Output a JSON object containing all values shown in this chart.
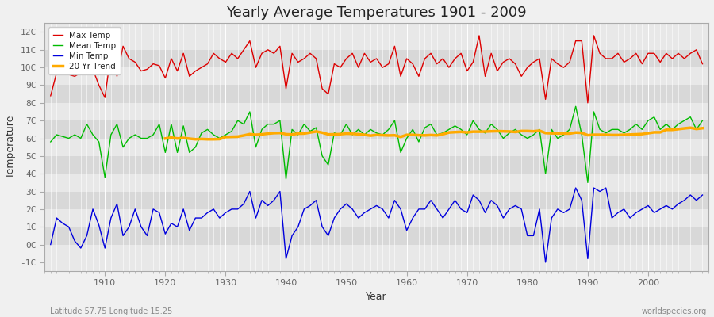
{
  "title": "Yearly Average Temperatures 1901 - 2009",
  "xlabel": "Year",
  "ylabel": "Temperature",
  "footnote_left": "Latitude 57.75 Longitude 15.25",
  "footnote_right": "worldspecies.org",
  "year_start": 1901,
  "year_end": 2009,
  "ylim": [
    -1.5,
    12.5
  ],
  "xlim_start": 1900,
  "xlim_end": 2010,
  "yticks": [
    -1,
    0,
    1,
    2,
    3,
    4,
    5,
    6,
    7,
    8,
    9,
    10,
    11,
    12
  ],
  "ytick_labels": [
    "-1C",
    "0C",
    "1C",
    "2C",
    "3C",
    "4C",
    "5C",
    "6C",
    "7C",
    "8C",
    "9C",
    "10C",
    "11C",
    "12C"
  ],
  "legend_entries": [
    "Max Temp",
    "Mean Temp",
    "Min Temp",
    "20 Yr Trend"
  ],
  "line_colors": [
    "#dd0000",
    "#00bb00",
    "#0000dd",
    "#ffaa00"
  ],
  "background_color": "#f0f0f0",
  "plot_bg_color_light": "#e8e8e8",
  "plot_bg_color_dark": "#d8d8d8",
  "grid_color": "#ffffff",
  "title_fontsize": 13,
  "label_fontsize": 9,
  "tick_fontsize": 8,
  "tick_color": "#666666",
  "xticks": [
    1910,
    1920,
    1930,
    1940,
    1950,
    1960,
    1970,
    1980,
    1990,
    2000
  ],
  "max_temp": [
    8.4,
    9.7,
    9.8,
    9.6,
    9.5,
    9.7,
    9.8,
    9.9,
    9.0,
    8.3,
    10.8,
    9.5,
    11.2,
    10.5,
    10.3,
    9.8,
    9.9,
    10.2,
    10.1,
    9.4,
    10.5,
    9.8,
    10.8,
    9.5,
    9.8,
    10.0,
    10.2,
    10.8,
    10.5,
    10.3,
    10.8,
    10.5,
    11.0,
    11.5,
    10.0,
    10.8,
    11.0,
    10.8,
    11.2,
    8.8,
    10.8,
    10.3,
    10.5,
    10.8,
    10.5,
    8.8,
    8.5,
    10.2,
    10.0,
    10.5,
    10.8,
    10.0,
    10.8,
    10.3,
    10.5,
    10.0,
    10.2,
    11.2,
    9.5,
    10.5,
    10.2,
    9.5,
    10.5,
    10.8,
    10.2,
    10.5,
    10.0,
    10.5,
    10.8,
    9.8,
    10.3,
    11.8,
    9.5,
    10.8,
    9.8,
    10.3,
    10.5,
    10.2,
    9.5,
    10.0,
    10.3,
    10.5,
    8.2,
    10.5,
    10.2,
    10.0,
    10.3,
    11.5,
    11.5,
    8.0,
    11.8,
    10.8,
    10.5,
    10.5,
    10.8,
    10.3,
    10.5,
    10.8,
    10.2,
    10.8,
    10.8,
    10.3,
    10.8,
    10.5,
    10.8,
    10.5,
    10.8,
    11.0,
    10.2
  ],
  "mean_temp": [
    5.8,
    6.2,
    6.1,
    6.0,
    6.2,
    6.0,
    6.8,
    6.2,
    5.8,
    3.8,
    6.2,
    6.8,
    5.5,
    6.0,
    6.2,
    6.0,
    6.0,
    6.2,
    6.8,
    5.2,
    6.8,
    5.2,
    6.7,
    5.2,
    5.5,
    6.3,
    6.5,
    6.2,
    6.0,
    6.2,
    6.4,
    7.0,
    6.8,
    7.5,
    5.5,
    6.5,
    6.8,
    6.8,
    7.0,
    3.7,
    6.5,
    6.2,
    6.8,
    6.4,
    6.6,
    5.0,
    4.5,
    6.3,
    6.2,
    6.8,
    6.2,
    6.5,
    6.2,
    6.5,
    6.3,
    6.2,
    6.5,
    7.0,
    5.2,
    6.0,
    6.5,
    5.8,
    6.6,
    6.8,
    6.2,
    6.3,
    6.5,
    6.7,
    6.5,
    6.2,
    7.0,
    6.5,
    6.3,
    6.8,
    6.5,
    6.0,
    6.3,
    6.5,
    6.2,
    6.0,
    6.2,
    6.5,
    4.0,
    6.5,
    6.0,
    6.2,
    6.5,
    7.8,
    6.2,
    3.5,
    7.5,
    6.5,
    6.3,
    6.5,
    6.5,
    6.3,
    6.5,
    6.8,
    6.5,
    7.0,
    7.2,
    6.5,
    6.8,
    6.5,
    6.8,
    7.0,
    7.2,
    6.5,
    7.0
  ],
  "min_temp": [
    0.0,
    1.5,
    1.2,
    1.0,
    0.2,
    -0.2,
    0.5,
    2.0,
    1.1,
    -0.2,
    1.5,
    2.3,
    0.5,
    1.0,
    2.0,
    1.0,
    0.5,
    2.0,
    1.8,
    0.6,
    1.2,
    1.0,
    2.0,
    0.8,
    1.5,
    1.5,
    1.8,
    2.0,
    1.5,
    1.8,
    2.0,
    2.0,
    2.3,
    3.0,
    1.5,
    2.5,
    2.2,
    2.5,
    3.0,
    -0.8,
    0.5,
    1.0,
    2.0,
    2.2,
    2.5,
    1.0,
    0.5,
    1.5,
    2.0,
    2.3,
    2.0,
    1.5,
    1.8,
    2.0,
    2.2,
    2.0,
    1.5,
    2.5,
    2.0,
    0.8,
    1.5,
    2.0,
    2.0,
    2.5,
    2.0,
    1.5,
    2.0,
    2.5,
    2.0,
    1.8,
    2.8,
    2.5,
    1.8,
    2.5,
    2.2,
    1.5,
    2.0,
    2.2,
    2.0,
    0.5,
    0.5,
    2.0,
    -1.0,
    1.5,
    2.0,
    1.8,
    2.0,
    3.2,
    2.5,
    -0.8,
    3.2,
    3.0,
    3.2,
    1.5,
    1.8,
    2.0,
    1.5,
    1.8,
    2.0,
    2.2,
    1.8,
    2.0,
    2.2,
    2.0,
    2.3,
    2.5,
    2.8,
    2.5,
    2.8
  ]
}
